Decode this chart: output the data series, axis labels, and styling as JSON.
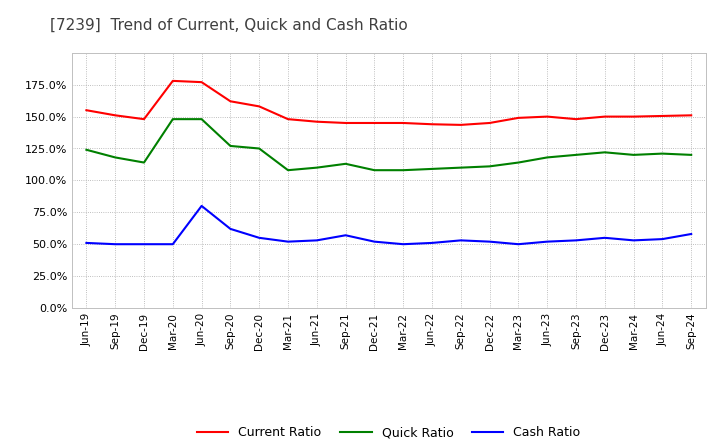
{
  "title": "[7239]  Trend of Current, Quick and Cash Ratio",
  "title_fontsize": 11,
  "x_labels": [
    "Jun-19",
    "Sep-19",
    "Dec-19",
    "Mar-20",
    "Jun-20",
    "Sep-20",
    "Dec-20",
    "Mar-21",
    "Jun-21",
    "Sep-21",
    "Dec-21",
    "Mar-22",
    "Jun-22",
    "Sep-22",
    "Dec-22",
    "Mar-23",
    "Jun-23",
    "Sep-23",
    "Dec-23",
    "Mar-24",
    "Jun-24",
    "Sep-24"
  ],
  "current_ratio": [
    155.0,
    151.0,
    148.0,
    178.0,
    177.0,
    162.0,
    158.0,
    148.0,
    146.0,
    145.0,
    145.0,
    145.0,
    144.0,
    143.5,
    145.0,
    149.0,
    150.0,
    148.0,
    150.0,
    150.0,
    150.5,
    151.0
  ],
  "quick_ratio": [
    124.0,
    118.0,
    114.0,
    148.0,
    148.0,
    127.0,
    125.0,
    108.0,
    110.0,
    113.0,
    108.0,
    108.0,
    109.0,
    110.0,
    111.0,
    114.0,
    118.0,
    120.0,
    122.0,
    120.0,
    121.0,
    120.0
  ],
  "cash_ratio": [
    51.0,
    50.0,
    50.0,
    50.0,
    80.0,
    62.0,
    55.0,
    52.0,
    53.0,
    57.0,
    52.0,
    50.0,
    51.0,
    53.0,
    52.0,
    50.0,
    52.0,
    53.0,
    55.0,
    53.0,
    54.0,
    58.0
  ],
  "current_color": "#ff0000",
  "quick_color": "#008000",
  "cash_color": "#0000ff",
  "background_color": "#ffffff",
  "plot_bg_color": "#ffffff",
  "grid_color": "#aaaaaa",
  "ylim": [
    0,
    200
  ],
  "yticks": [
    0.0,
    25.0,
    50.0,
    75.0,
    100.0,
    125.0,
    150.0,
    175.0
  ],
  "legend_labels": [
    "Current Ratio",
    "Quick Ratio",
    "Cash Ratio"
  ]
}
